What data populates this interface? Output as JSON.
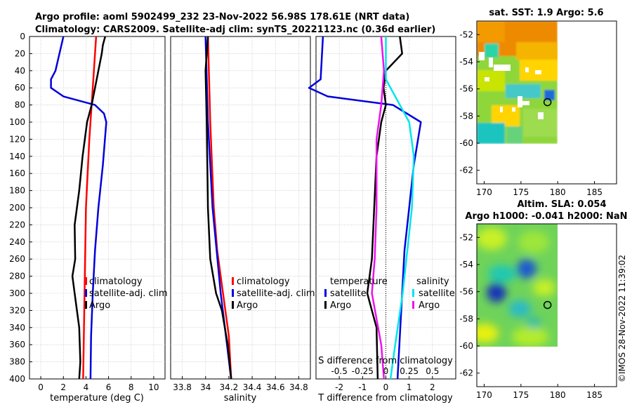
{
  "title": {
    "line1": "Argo profile: aoml 5902499_232 23-Nov-2022 56.98S 178.61E (NRT data)",
    "line2": "Climatology: CARS2009. Satellite-adj clim: synTS_20221123.nc (0.36d earlier)"
  },
  "watermark": "©IMOS 28-Nov-2022 11:39:02",
  "colors": {
    "climatology": "#ff0000",
    "satellite": "#0000dd",
    "argo": "#000000",
    "cyan": "#00e5ee",
    "magenta": "#ee11ee"
  },
  "chart_data": [
    {
      "type": "line",
      "id": "temperature",
      "xlabel": "temperature (deg C)",
      "ylabel": "",
      "xlim": [
        -1,
        11
      ],
      "ylim": [
        400,
        0
      ],
      "xticks": [
        0,
        2,
        4,
        6,
        8,
        10
      ],
      "xtick_labels": [
        "0",
        "2",
        "4",
        "6",
        "8",
        "10"
      ],
      "yticks": [
        0,
        20,
        40,
        60,
        80,
        100,
        120,
        140,
        160,
        180,
        200,
        220,
        240,
        260,
        280,
        300,
        320,
        340,
        360,
        380,
        400
      ],
      "ytick_labels": [
        "0",
        "20",
        "40",
        "60",
        "80",
        "100",
        "120",
        "140",
        "160",
        "180",
        "200",
        "220",
        "240",
        "260",
        "280",
        "300",
        "320",
        "340",
        "360",
        "380",
        "400"
      ],
      "legend": [
        "climatology",
        "satellite-adj. clim",
        "Argo"
      ],
      "series": [
        {
          "name": "climatology",
          "color": "#ff0000",
          "depth": [
            0,
            40,
            80,
            120,
            160,
            200,
            240,
            280,
            320,
            360,
            400
          ],
          "values": [
            4.9,
            4.7,
            4.5,
            4.3,
            4.15,
            4.0,
            3.95,
            3.9,
            3.85,
            3.8,
            3.75
          ]
        },
        {
          "name": "satellite-adj. clim",
          "color": "#0000dd",
          "depth": [
            0,
            40,
            50,
            60,
            70,
            80,
            90,
            100,
            150,
            200,
            250,
            300,
            350,
            400
          ],
          "values": [
            2.0,
            1.3,
            0.9,
            0.9,
            2.0,
            4.8,
            5.6,
            5.8,
            5.5,
            5.1,
            4.8,
            4.6,
            4.45,
            4.4
          ]
        },
        {
          "name": "Argo",
          "color": "#000000",
          "depth": [
            0,
            10,
            20,
            40,
            60,
            80,
            100,
            120,
            140,
            180,
            220,
            260,
            280,
            300,
            340,
            380,
            400
          ],
          "values": [
            5.7,
            5.5,
            5.4,
            5.1,
            4.8,
            4.5,
            4.1,
            3.9,
            3.7,
            3.4,
            3.0,
            3.05,
            2.8,
            3.0,
            3.4,
            3.5,
            3.4
          ]
        }
      ]
    },
    {
      "type": "line",
      "id": "salinity",
      "xlabel": "salinity",
      "ylabel": "",
      "xlim": [
        33.7,
        34.9
      ],
      "ylim": [
        400,
        0
      ],
      "xticks": [
        33.8,
        34,
        34.2,
        34.4,
        34.6,
        34.8
      ],
      "xtick_labels": [
        "33.8",
        "34",
        "34.2",
        "34.4",
        "34.6",
        "34.8"
      ],
      "legend": [
        "climatology",
        "satellite-adj. clim",
        "Argo"
      ],
      "series": [
        {
          "name": "climatology",
          "color": "#ff0000",
          "depth": [
            0,
            100,
            200,
            250,
            300,
            350,
            400
          ],
          "values": [
            34.02,
            34.04,
            34.07,
            34.1,
            34.15,
            34.2,
            34.22
          ]
        },
        {
          "name": "satellite-adj. clim",
          "color": "#0000dd",
          "depth": [
            0,
            100,
            200,
            300,
            400
          ],
          "values": [
            34.0,
            34.02,
            34.06,
            34.13,
            34.22
          ]
        },
        {
          "name": "Argo",
          "color": "#000000",
          "depth": [
            0,
            40,
            100,
            200,
            260,
            300,
            320,
            360,
            400
          ],
          "values": [
            34.02,
            34.0,
            34.01,
            34.02,
            34.04,
            34.09,
            34.14,
            34.19,
            34.22
          ]
        }
      ]
    },
    {
      "type": "line",
      "id": "difference",
      "xlabel": "T difference from climatology",
      "xlabel_top": "S difference from climatology",
      "xlim": [
        -3,
        3
      ],
      "ylim": [
        400,
        0
      ],
      "xticks": [
        -2,
        -1,
        0,
        1,
        2
      ],
      "xtick_labels": [
        "-2",
        "-1",
        "0",
        "1",
        "2"
      ],
      "xticks_top": [
        -0.5,
        -0.25,
        0,
        0.25,
        0.5
      ],
      "xtick_labels_top": [
        "-0.5",
        "-0.25",
        "0",
        "0.25",
        "0.5"
      ],
      "legend_left_title": "temperature",
      "legend_right_title": "salinity",
      "legend": [
        "satellite",
        "Argo",
        "satellite",
        "Argo"
      ],
      "series": [
        {
          "name": "T satellite",
          "color": "#0000dd",
          "depth": [
            0,
            50,
            60,
            70,
            80,
            100,
            150,
            200,
            250,
            300,
            350,
            400
          ],
          "values": [
            -2.7,
            -2.8,
            -3.3,
            -2.5,
            0.3,
            1.5,
            1.2,
            1.0,
            0.8,
            0.7,
            0.6,
            0.5
          ]
        },
        {
          "name": "T Argo",
          "color": "#000000",
          "depth": [
            0,
            20,
            40,
            60,
            80,
            100,
            140,
            200,
            260,
            300,
            340,
            400
          ],
          "values": [
            0.6,
            0.7,
            0.0,
            -0.1,
            0.0,
            -0.2,
            -0.4,
            -0.5,
            -0.6,
            -0.8,
            -0.4,
            -0.35
          ]
        },
        {
          "name": "S satellite",
          "color": "#00e5ee",
          "depth": [
            0,
            50,
            100,
            140,
            200,
            260,
            300,
            360,
            400
          ],
          "values": [
            0.0,
            0.0,
            0.25,
            0.3,
            0.28,
            0.22,
            0.18,
            0.1,
            0.05
          ]
        },
        {
          "name": "S Argo",
          "color": "#ee11ee",
          "depth": [
            0,
            40,
            80,
            120,
            200,
            260,
            300,
            360,
            400
          ],
          "values": [
            -0.05,
            -0.02,
            -0.05,
            -0.1,
            -0.1,
            -0.12,
            -0.15,
            -0.05,
            -0.02
          ]
        }
      ]
    },
    {
      "type": "heatmap",
      "id": "sst",
      "title": "sat. SST: 1.9 Argo: 5.6",
      "xlim": [
        169,
        188
      ],
      "ylim": [
        -63,
        -51
      ],
      "xticks": [
        170,
        175,
        180,
        185
      ],
      "xtick_labels": [
        "170",
        "175",
        "180",
        "185"
      ],
      "yticks": [
        -52,
        -54,
        -56,
        -58,
        -60,
        -62
      ],
      "ytick_labels": [
        "-52",
        "-54",
        "-56",
        "-58",
        "-60",
        "-62"
      ],
      "data_extent": {
        "lon": [
          169,
          180
        ],
        "lat": [
          -60,
          -51
        ]
      },
      "marker": {
        "lon": 178.61,
        "lat": -56.98
      }
    },
    {
      "type": "heatmap",
      "id": "sla",
      "title_line1": "Altim. SLA: 0.054",
      "title_line2": "Argo h1000: -0.041 h2000: NaN",
      "xlim": [
        169,
        188
      ],
      "ylim": [
        -63,
        -51
      ],
      "xticks": [
        170,
        175,
        180,
        185
      ],
      "xtick_labels": [
        "170",
        "175",
        "180",
        "185"
      ],
      "yticks": [
        -52,
        -54,
        -56,
        -58,
        -60,
        -62
      ],
      "ytick_labels": [
        "-52",
        "-54",
        "-56",
        "-58",
        "-60",
        "-62"
      ],
      "data_extent": {
        "lon": [
          169,
          180
        ],
        "lat": [
          -60,
          -51
        ]
      },
      "marker": {
        "lon": 178.61,
        "lat": -56.98
      }
    }
  ]
}
